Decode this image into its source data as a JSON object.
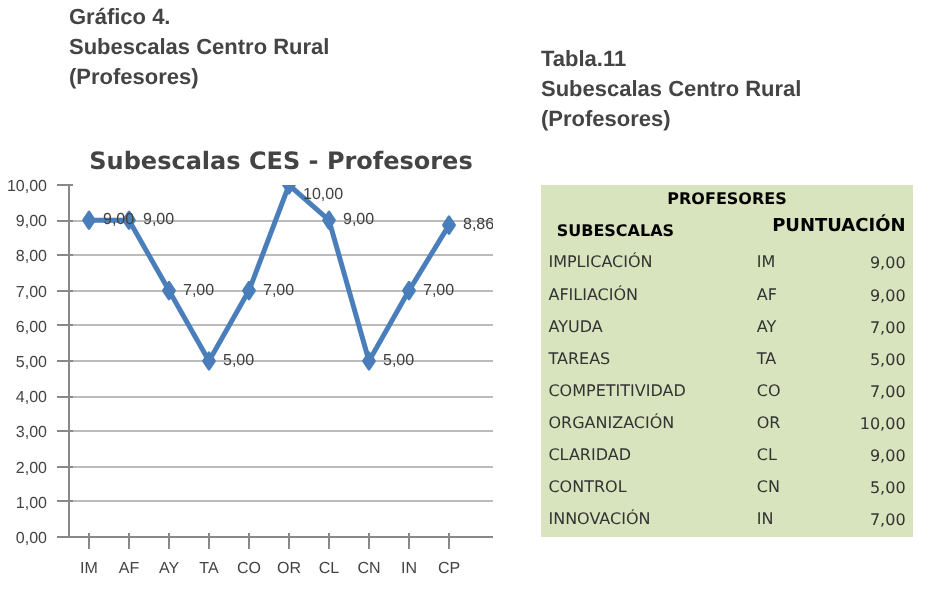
{
  "chart_data": [
    {
      "type": "line",
      "title": "Subescalas CES - Profesores",
      "annotations": [
        "Gráfico 4.",
        "Subescalas Centro Rural",
        "(Profesores)"
      ],
      "categories": [
        "IM",
        "AF",
        "AY",
        "TA",
        "CO",
        "OR",
        "CL",
        "CN",
        "IN",
        "CP"
      ],
      "series": [
        {
          "color": "#4a7ebb",
          "values": [
            9,
            9,
            7,
            5,
            7,
            10,
            9,
            5,
            7,
            8.86
          ],
          "value_labels": [
            "9,00",
            "9,00",
            "7,00",
            "5,00",
            "7,00",
            "10,00",
            "9,00",
            "5,00",
            "7,00",
            "8,86"
          ]
        }
      ],
      "ylim": [
        0,
        10
      ],
      "yticks": [
        {
          "value": 0,
          "label": "0,00"
        },
        {
          "value": 1,
          "label": "1,00"
        },
        {
          "value": 2,
          "label": "2,00"
        },
        {
          "value": 3,
          "label": "3,00"
        },
        {
          "value": 4,
          "label": "4,00"
        },
        {
          "value": 5,
          "label": "5,00"
        },
        {
          "value": 6,
          "label": "6,00"
        },
        {
          "value": 7,
          "label": "7,00"
        },
        {
          "value": 8,
          "label": "8,00"
        },
        {
          "value": 9,
          "label": "9,00"
        },
        {
          "value": 10,
          "label": "10,00"
        }
      ],
      "grid": "y",
      "marker": "diamond",
      "line_style": "solid"
    },
    {
      "type": "other",
      "title": "PROFESORES",
      "annotations": [
        "Tabla.11",
        "Subescalas Centro Rural",
        "(Profesores)",
        "SUBESCALAS",
        "PUNTUACIÓN",
        "IMPLICACIÓN",
        "IM",
        "9,00",
        "AFILIACIÓN",
        "AF",
        "9,00",
        "AYUDA",
        "AY",
        "7,00",
        "TAREAS",
        "TA",
        "5,00",
        "COMPETITIVIDAD",
        "CO",
        "7,00",
        "ORGANIZACIÓN",
        "OR",
        "10,00",
        "CLARIDAD",
        "CL",
        "9,00",
        "CONTROL",
        "CN",
        "5,00",
        "INNOVACIÓN",
        "IN",
        "7,00"
      ]
    }
  ]
}
